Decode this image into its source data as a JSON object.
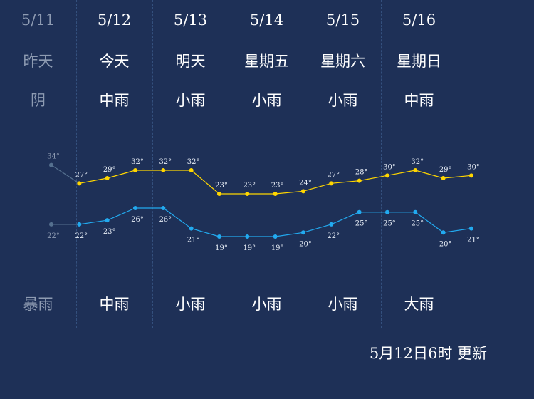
{
  "days": [
    {
      "date": "5/11",
      "day": "昨天",
      "weather": "阴",
      "night_weather": "暴雨",
      "past": true
    },
    {
      "date": "5/12",
      "day": "今天",
      "weather": "中雨",
      "night_weather": "中雨",
      "past": false
    },
    {
      "date": "5/13",
      "day": "明天",
      "weather": "小雨",
      "night_weather": "小雨",
      "past": false
    },
    {
      "date": "5/14",
      "day": "星期五",
      "weather": "小雨",
      "night_weather": "小雨",
      "past": false
    },
    {
      "date": "5/15",
      "day": "星期六",
      "weather": "小雨",
      "night_weather": "小雨",
      "past": false
    },
    {
      "date": "5/16",
      "day": "星期日",
      "weather": "中雨",
      "night_weather": "大雨",
      "past": false
    }
  ],
  "chart_data": {
    "type": "line",
    "unit_suffix": "°",
    "series": [
      {
        "key": "high",
        "color": "#ffd600",
        "values": [
          34,
          27,
          29,
          32,
          32,
          32,
          23,
          23,
          23,
          24,
          27,
          28,
          30,
          32,
          29,
          30
        ]
      },
      {
        "key": "low",
        "color": "#22aaf0",
        "values": [
          22,
          22,
          23,
          26,
          26,
          21,
          19,
          19,
          19,
          20,
          22,
          25,
          25,
          25,
          20,
          21
        ]
      }
    ],
    "past_points": 1,
    "past_color": "#55708f"
  },
  "update_text": "5月12日6时 更新"
}
